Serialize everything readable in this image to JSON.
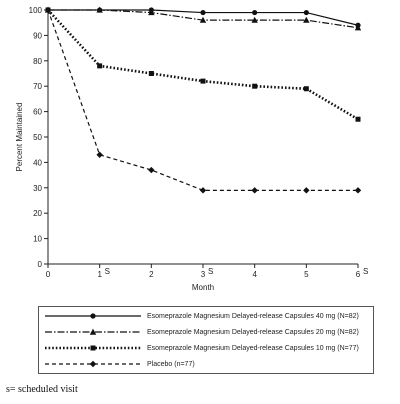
{
  "chart_data": {
    "type": "line",
    "ylabel": "Percent Maintained",
    "xlabel": "Month",
    "x": [
      0,
      1,
      2,
      3,
      4,
      5,
      6
    ],
    "xticks": [
      "0",
      "1",
      "2",
      "3",
      "4",
      "5",
      "6"
    ],
    "scheduled_marker": "S",
    "scheduled_x": [
      1,
      3,
      6
    ],
    "yticks": [
      "0",
      "10",
      "20",
      "30",
      "40",
      "50",
      "60",
      "70",
      "80",
      "90",
      "100"
    ],
    "ylim": [
      0,
      100
    ],
    "xlim": [
      0,
      6
    ],
    "series": [
      {
        "name": "Esomeprazole Magnesium Delayed-release Capsules 40 mg (N=82)",
        "marker": "circle",
        "dash": "solid",
        "values": [
          100,
          100,
          100,
          99,
          99,
          99,
          94
        ]
      },
      {
        "name": "Esomeprazole Magnesium Delayed-release Capsules 20 mg (N=82)",
        "marker": "triangle",
        "dash": "dashdot",
        "values": [
          100,
          100,
          99,
          96,
          96,
          96,
          93
        ]
      },
      {
        "name": "Esomeprazole Magnesium Delayed-release Capsules 10 mg (N=77)",
        "marker": "square",
        "dash": "dotted",
        "values": [
          100,
          78,
          75,
          72,
          70,
          69,
          57
        ]
      },
      {
        "name": "Placebo (n=77)",
        "marker": "diamond",
        "dash": "dashed",
        "values": [
          100,
          43,
          37,
          29,
          29,
          29,
          29
        ]
      }
    ]
  },
  "footnote": "s= scheduled visit"
}
